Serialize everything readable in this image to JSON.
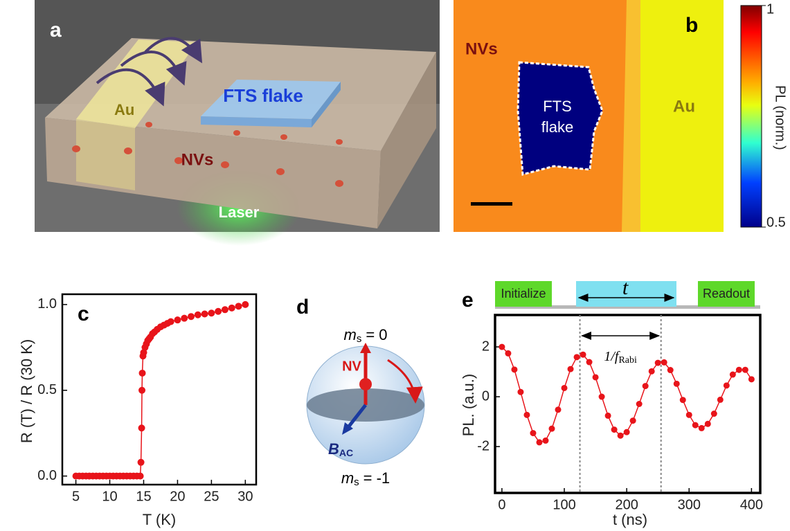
{
  "panel_a": {
    "label": "a",
    "gold": "Au",
    "flake": "FTS flake",
    "nv": "NVs",
    "laser": "Laser"
  },
  "panel_b": {
    "label": "b",
    "nv": "NVs",
    "flake": [
      "FTS",
      "flake"
    ],
    "gold": "Au",
    "colorbar": {
      "label": "PL (norm.)",
      "lim": [
        0.5,
        1
      ],
      "ticks": [
        0.5,
        1
      ]
    }
  },
  "panel_d": {
    "label": "d",
    "top": {
      "symbol": "m",
      "sub": "s",
      "rest": "= 0"
    },
    "nv": "NV",
    "field": {
      "symbol": "B",
      "sub": "AC"
    },
    "bottom": {
      "symbol": "m",
      "sub": "s",
      "rest": "= -1"
    }
  },
  "chart_data": [
    {
      "type": "line",
      "panel_label": "c",
      "xlabel": "T (K)",
      "ylabel": "R (T) / R (30 K)",
      "color": "#e8141a",
      "x": [
        5,
        5.5,
        6,
        6.5,
        7,
        7.5,
        8,
        8.5,
        9,
        9.5,
        10,
        10.5,
        11,
        11.5,
        12,
        12.5,
        13,
        13.5,
        14,
        14.5,
        14.6,
        14.7,
        14.75,
        14.8,
        14.9,
        15,
        15.2,
        15.4,
        15.6,
        15.8,
        16,
        16.3,
        16.6,
        17,
        17.5,
        18,
        18.5,
        19,
        20,
        21,
        22,
        23,
        24,
        25,
        26,
        27,
        28,
        29,
        30
      ],
      "values": [
        0,
        0,
        0,
        0,
        0,
        0,
        0,
        0,
        0,
        0,
        0,
        0,
        0,
        0,
        0,
        0,
        0,
        0,
        0,
        0,
        0.08,
        0.28,
        0.5,
        0.6,
        0.7,
        0.72,
        0.75,
        0.77,
        0.79,
        0.8,
        0.81,
        0.83,
        0.84,
        0.855,
        0.87,
        0.88,
        0.89,
        0.9,
        0.91,
        0.92,
        0.93,
        0.94,
        0.945,
        0.95,
        0.96,
        0.97,
        0.98,
        0.99,
        1.0
      ],
      "xlim": [
        3,
        31.6
      ],
      "ylim": [
        -0.05,
        1.06
      ],
      "xticks": [
        5,
        10,
        15,
        20,
        25,
        30
      ],
      "yticks": [
        {
          "value": 0,
          "label": "0.0"
        },
        {
          "value": 0.5,
          "label": "0.5"
        },
        {
          "value": 1,
          "label": "1.0"
        }
      ]
    },
    {
      "type": "line",
      "panel_label": "e",
      "xlabel": "t (ns)",
      "ylabel": "PL. (a.u.)",
      "color": "#e8141a",
      "x": [
        0,
        10,
        20,
        30,
        40,
        50,
        60,
        70,
        80,
        90,
        100,
        110,
        120,
        130,
        140,
        150,
        160,
        170,
        180,
        190,
        200,
        210,
        220,
        230,
        240,
        250,
        260,
        270,
        280,
        290,
        300,
        310,
        320,
        330,
        340,
        350,
        360,
        370,
        380,
        390,
        400
      ],
      "values": [
        2.0,
        1.74,
        1.09,
        0.19,
        -0.73,
        -1.46,
        -1.83,
        -1.76,
        -1.28,
        -0.52,
        0.35,
        1.11,
        1.59,
        1.69,
        1.39,
        0.78,
        0.0,
        -0.76,
        -1.32,
        -1.56,
        -1.42,
        -0.96,
        -0.29,
        0.43,
        1.02,
        1.36,
        1.38,
        1.07,
        0.52,
        -0.13,
        -0.73,
        -1.14,
        -1.26,
        -1.09,
        -0.68,
        -0.12,
        0.45,
        0.89,
        1.08,
        1.08,
        0.7
      ],
      "xlim": [
        -11,
        414
      ],
      "ylim": [
        -3.86,
        3.28
      ],
      "xticks": [
        0,
        100,
        200,
        300,
        400
      ],
      "yticks": [
        -2,
        0,
        2
      ],
      "vlines": [
        125,
        255
      ],
      "timeline": {
        "start": "Initialize",
        "wait": "t",
        "end": "Readout"
      },
      "annotation": {
        "main": "1/f",
        "sub": "Rabi"
      }
    }
  ]
}
